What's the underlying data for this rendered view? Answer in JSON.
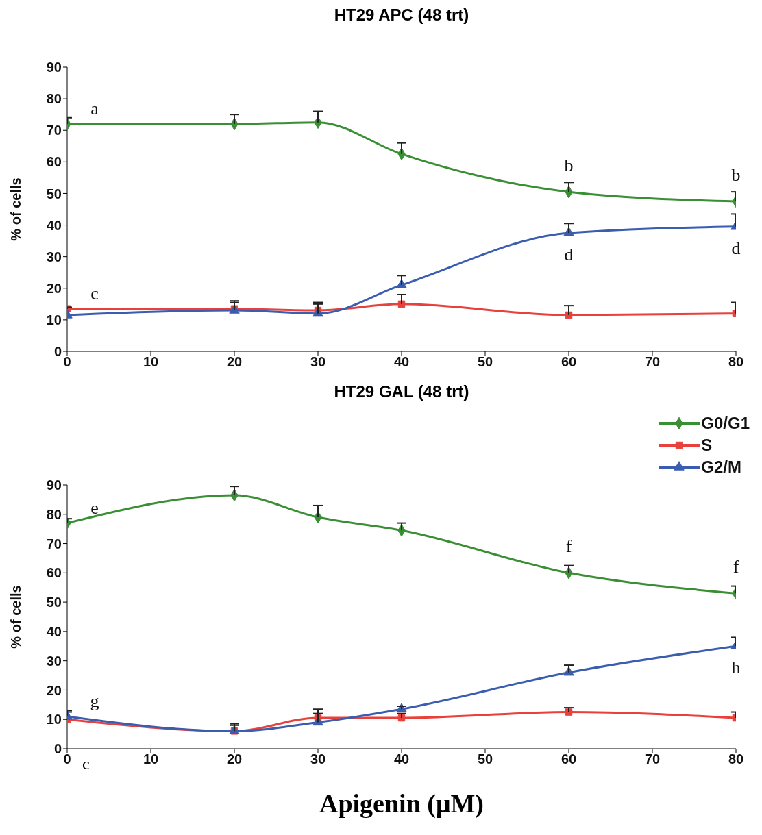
{
  "chart_data": [
    {
      "type": "line",
      "title": "HT29 APC (48 trt)",
      "ylabel": "% of cells",
      "x": [
        0,
        20,
        30,
        40,
        60,
        80
      ],
      "xlim": [
        0,
        80
      ],
      "xticks": [
        0,
        10,
        20,
        30,
        40,
        50,
        60,
        70,
        80
      ],
      "ylim": [
        0,
        90
      ],
      "yticks": [
        0,
        10,
        20,
        30,
        40,
        50,
        60,
        70,
        80,
        90
      ],
      "series": [
        {
          "color": "#3a8f35",
          "marker": "diamond",
          "values": [
            72,
            72,
            72.5,
            62.5,
            50.5,
            47.5
          ],
          "errors": [
            [
              72,
              74
            ],
            [
              72,
              75
            ],
            [
              72.5,
              76
            ],
            [
              62.5,
              66
            ],
            [
              50.5,
              53.5
            ],
            [
              47.5,
              50.5
            ]
          ]
        },
        {
          "color": "#e8413c",
          "marker": "square",
          "values": [
            13.5,
            13.5,
            13,
            15,
            11.5,
            12
          ],
          "errors": [
            [
              13.5,
              14
            ],
            [
              13.5,
              16
            ],
            [
              13,
              15.5
            ],
            [
              15,
              18
            ],
            [
              11.5,
              14.5
            ],
            [
              12,
              15.5
            ]
          ]
        },
        {
          "color": "#3a5db0",
          "marker": "triangle",
          "values": [
            11.5,
            13,
            12,
            21,
            37.5,
            39.5
          ],
          "errors": [
            null,
            [
              13,
              15.5
            ],
            [
              12,
              15
            ],
            [
              21,
              24
            ],
            [
              37.5,
              40.5
            ],
            [
              39.5,
              43.5
            ]
          ]
        }
      ],
      "annotations": [
        {
          "text": "a",
          "x": 0,
          "y": 72
        },
        {
          "text": "b",
          "x": 60,
          "y": 50.5
        },
        {
          "text": "b",
          "x": 80,
          "y": 47.5
        },
        {
          "text": "c",
          "x": 0,
          "y": 13.5
        },
        {
          "text": "d",
          "x": 60,
          "y": 37.5
        },
        {
          "text": "d",
          "x": 80,
          "y": 39.5
        }
      ]
    },
    {
      "type": "line",
      "title": "HT29 GAL (48 trt)",
      "ylabel": "% of cells",
      "xlabel": "Apigenin (μM)",
      "legend": "top right",
      "x": [
        0,
        20,
        30,
        40,
        60,
        80
      ],
      "xlim": [
        0,
        80
      ],
      "xticks": [
        0,
        10,
        20,
        30,
        40,
        50,
        60,
        70,
        80
      ],
      "ylim": [
        0,
        90
      ],
      "yticks": [
        0,
        10,
        20,
        30,
        40,
        50,
        60,
        70,
        80,
        90
      ],
      "series": [
        {
          "name": "G0/G1",
          "color": "#3a8f35",
          "marker": "diamond",
          "values": [
            77,
            86.5,
            79,
            74.5,
            60,
            53
          ],
          "errors": [
            [
              77,
              78.5
            ],
            [
              86.5,
              89.5
            ],
            [
              79,
              83
            ],
            [
              74.5,
              77
            ],
            [
              60,
              62.5
            ],
            [
              53,
              55.5
            ]
          ]
        },
        {
          "name": "S",
          "color": "#e8413c",
          "marker": "square",
          "values": [
            10,
            6,
            10.5,
            10.5,
            12.5,
            10.5
          ],
          "errors": [
            [
              10,
              12.5
            ],
            [
              6,
              8.5
            ],
            [
              10.5,
              13.5
            ],
            [
              10.5,
              12
            ],
            [
              12.5,
              14
            ],
            [
              10.5,
              12.5
            ]
          ]
        },
        {
          "name": "G2/M",
          "color": "#3a5db0",
          "marker": "triangle",
          "values": [
            11,
            6,
            9,
            13.5,
            26,
            35
          ],
          "errors": [
            [
              11,
              13
            ],
            [
              6,
              8
            ],
            [
              9,
              12
            ],
            [
              13.5,
              14.5
            ],
            [
              26,
              28.5
            ],
            [
              35,
              38
            ]
          ]
        }
      ],
      "annotations": [
        {
          "text": "e",
          "x": 0,
          "y": 77
        },
        {
          "text": "f",
          "x": 60,
          "y": 60
        },
        {
          "text": "f",
          "x": 80,
          "y": 53
        },
        {
          "text": "g",
          "x": 0,
          "y": 11
        },
        {
          "text": "h",
          "x": 80,
          "y": 35
        },
        "c"
      ]
    }
  ]
}
